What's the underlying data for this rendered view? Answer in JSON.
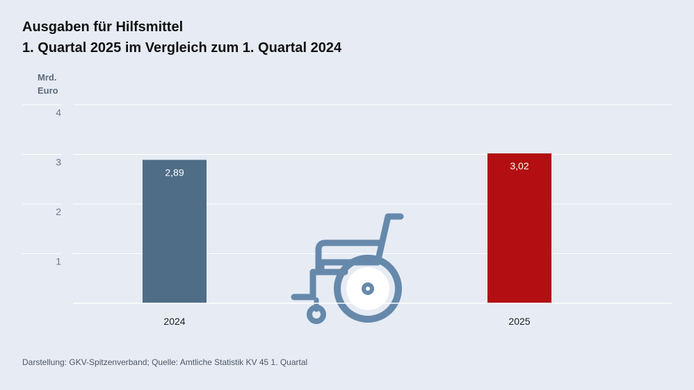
{
  "title": {
    "line1": "Ausgaben für Hilfsmittel",
    "line2": "1. Quartal 2025 im Vergleich zum 1. Quartal 2024"
  },
  "y_unit": {
    "line1": "Mrd.",
    "line2": "Euro"
  },
  "source": "Darstellung: GKV-Spitzenverband; Quelle: Amtliche Statistik KV 45 1. Quartal",
  "colors": {
    "background": "#e6ebf4",
    "bar_2024": "#4f6d87",
    "bar_2025": "#b30f12",
    "icon": "#6689ab"
  },
  "icon": "wheelchair-icon",
  "chart_data": {
    "type": "bar",
    "title": "Ausgaben für Hilfsmittel – 1. Quartal 2025 im Vergleich zum 1. Quartal 2024",
    "categories": [
      "2024",
      "2025"
    ],
    "values": [
      2.89,
      3.02
    ],
    "value_labels": [
      "2,89",
      "3,02"
    ],
    "ylabel": "Mrd. Euro",
    "xlabel": "",
    "ylim": [
      0,
      4
    ],
    "yticks": [
      1,
      2,
      3,
      4
    ],
    "ytick_labels": [
      "1",
      "2",
      "3",
      "4"
    ],
    "grid": true
  }
}
